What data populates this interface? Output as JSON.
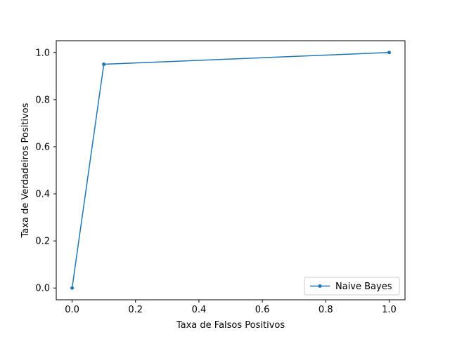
{
  "chart_data": {
    "type": "line",
    "title": "",
    "xlabel": "Taxa de Falsos Positivos",
    "ylabel": "Taxa de Verdadeiros Positivos",
    "xlim": [
      -0.05,
      1.05
    ],
    "ylim": [
      -0.05,
      1.05
    ],
    "xticks": [
      0.0,
      0.2,
      0.4,
      0.6,
      0.8,
      1.0
    ],
    "yticks": [
      0.0,
      0.2,
      0.4,
      0.6,
      0.8,
      1.0
    ],
    "xtick_labels": [
      "0.0",
      "0.2",
      "0.4",
      "0.6",
      "0.8",
      "1.0"
    ],
    "ytick_labels": [
      "0.0",
      "0.2",
      "0.4",
      "0.6",
      "0.8",
      "1.0"
    ],
    "grid": false,
    "legend_position": "lower-right",
    "series": [
      {
        "name": "Naive Bayes",
        "color": "#1f77b4",
        "marker": "point",
        "x": [
          0.0,
          0.1,
          1.0
        ],
        "y": [
          0.0,
          0.95,
          1.0
        ]
      }
    ]
  }
}
